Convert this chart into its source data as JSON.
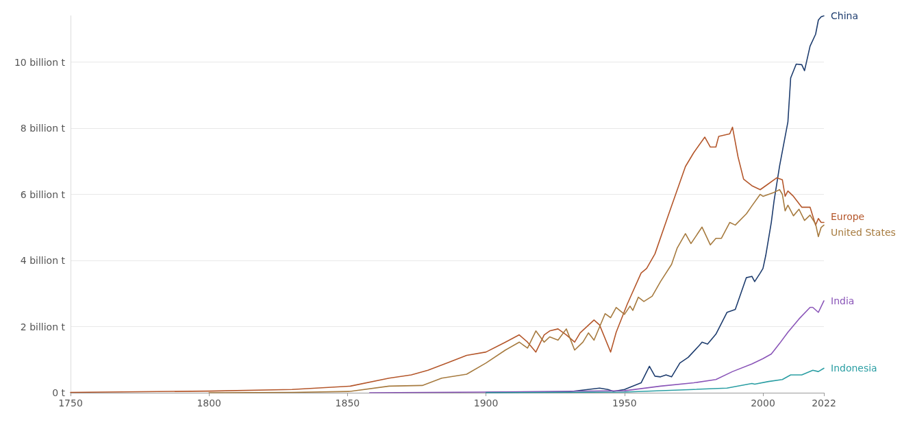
{
  "chart_data": {
    "type": "line",
    "xlim": [
      1750,
      2022
    ],
    "ylim": [
      0,
      11.4
    ],
    "xticks": [
      1750,
      1800,
      1850,
      1900,
      1950,
      2000,
      2022
    ],
    "yticks": [
      {
        "value": 0,
        "label": "0 t"
      },
      {
        "value": 2,
        "label": "2 billion t"
      },
      {
        "value": 4,
        "label": "4 billion t"
      },
      {
        "value": 6,
        "label": "6 billion t"
      },
      {
        "value": 8,
        "label": "8 billion t"
      },
      {
        "value": 10,
        "label": "10 billion t"
      }
    ],
    "grid": "y",
    "legend": false,
    "marker": "none",
    "line_style": "solid",
    "series": [
      {
        "name": "China",
        "color": "#1d3c6e",
        "x": [
          1900,
          1930,
          1941,
          1944,
          1946,
          1950,
          1956,
          1959,
          1961,
          1963,
          1965,
          1967,
          1970,
          1973,
          1977,
          1978,
          1980,
          1983,
          1987,
          1990,
          1994,
          1996,
          1997,
          1999,
          2000,
          2001,
          2003,
          2004,
          2006,
          2009,
          2010,
          2012,
          2014,
          2015,
          2017,
          2019,
          2020,
          2021,
          2022
        ],
        "values": [
          0.01,
          0.03,
          0.14,
          0.1,
          0.04,
          0.1,
          0.3,
          0.8,
          0.5,
          0.48,
          0.54,
          0.48,
          0.9,
          1.07,
          1.43,
          1.53,
          1.47,
          1.77,
          2.43,
          2.52,
          3.48,
          3.52,
          3.36,
          3.62,
          3.76,
          4.15,
          5.15,
          5.8,
          6.86,
          8.19,
          9.52,
          9.94,
          9.92,
          9.74,
          10.48,
          10.84,
          11.27,
          11.37,
          11.4
        ]
      },
      {
        "name": "Europe",
        "color": "#b4562a",
        "x": [
          1750,
          1800,
          1830,
          1851,
          1865,
          1873,
          1879,
          1886,
          1893,
          1900,
          1907,
          1912,
          1915,
          1918,
          1921,
          1923,
          1926,
          1929,
          1932,
          1934,
          1939,
          1941,
          1945,
          1947,
          1951,
          1956,
          1958,
          1961,
          1966,
          1972,
          1975,
          1979,
          1981,
          1983,
          1984,
          1988,
          1989,
          1991,
          1993,
          1996,
          1999,
          2001,
          2005,
          2007,
          2008,
          2009,
          2011,
          2014,
          2017,
          2019,
          2020,
          2021,
          2022
        ],
        "values": [
          0.01,
          0.05,
          0.1,
          0.2,
          0.44,
          0.54,
          0.68,
          0.9,
          1.13,
          1.23,
          1.53,
          1.75,
          1.53,
          1.23,
          1.75,
          1.87,
          1.93,
          1.75,
          1.53,
          1.81,
          2.2,
          2.05,
          1.23,
          1.83,
          2.68,
          3.62,
          3.76,
          4.2,
          5.41,
          6.84,
          7.26,
          7.73,
          7.43,
          7.43,
          7.75,
          7.83,
          8.03,
          7.13,
          6.46,
          6.26,
          6.14,
          6.26,
          6.5,
          6.44,
          5.94,
          6.1,
          5.94,
          5.61,
          5.61,
          5.07,
          5.27,
          5.15,
          5.15
        ]
      },
      {
        "name": "United States",
        "color": "#a67a3e",
        "x": [
          1800,
          1830,
          1851,
          1865,
          1877,
          1884,
          1893,
          1900,
          1907,
          1912,
          1915,
          1918,
          1921,
          1923,
          1926,
          1929,
          1932,
          1935,
          1937,
          1939,
          1943,
          1945,
          1947,
          1950,
          1952,
          1953,
          1955,
          1957,
          1960,
          1963,
          1967,
          1969,
          1972,
          1974,
          1978,
          1981,
          1983,
          1985,
          1988,
          1990,
          1994,
          1996,
          1999,
          2000,
          2004,
          2006,
          2007,
          2008,
          2009,
          2011,
          2013,
          2015,
          2017,
          2019,
          2020,
          2021,
          2022
        ],
        "values": [
          0.0,
          0.01,
          0.04,
          0.2,
          0.22,
          0.44,
          0.56,
          0.9,
          1.29,
          1.53,
          1.35,
          1.87,
          1.53,
          1.69,
          1.59,
          1.93,
          1.29,
          1.53,
          1.81,
          1.59,
          2.39,
          2.27,
          2.58,
          2.37,
          2.62,
          2.49,
          2.89,
          2.76,
          2.92,
          3.36,
          3.88,
          4.37,
          4.81,
          4.51,
          5.01,
          4.47,
          4.67,
          4.67,
          5.15,
          5.07,
          5.41,
          5.65,
          6.0,
          5.94,
          6.06,
          6.14,
          6.0,
          5.5,
          5.67,
          5.35,
          5.55,
          5.21,
          5.37,
          5.1,
          4.72,
          5.0,
          5.07
        ]
      },
      {
        "name": "India",
        "color": "#8a55b8",
        "x": [
          1858,
          1900,
          1950,
          1963,
          1975,
          1983,
          1989,
          1996,
          2000,
          2003,
          2006,
          2009,
          2013,
          2017,
          2018,
          2020,
          2022
        ],
        "values": [
          0.0,
          0.02,
          0.06,
          0.2,
          0.3,
          0.4,
          0.64,
          0.87,
          1.03,
          1.17,
          1.49,
          1.83,
          2.23,
          2.58,
          2.58,
          2.43,
          2.78
        ]
      },
      {
        "name": "Indonesia",
        "color": "#2a9ea3",
        "x": [
          1900,
          1950,
          1975,
          1987,
          1996,
          1997,
          2002,
          2007,
          2010,
          2014,
          2018,
          2020,
          2022
        ],
        "values": [
          0.0,
          0.02,
          0.1,
          0.14,
          0.28,
          0.26,
          0.34,
          0.4,
          0.54,
          0.54,
          0.68,
          0.64,
          0.74
        ]
      }
    ]
  }
}
